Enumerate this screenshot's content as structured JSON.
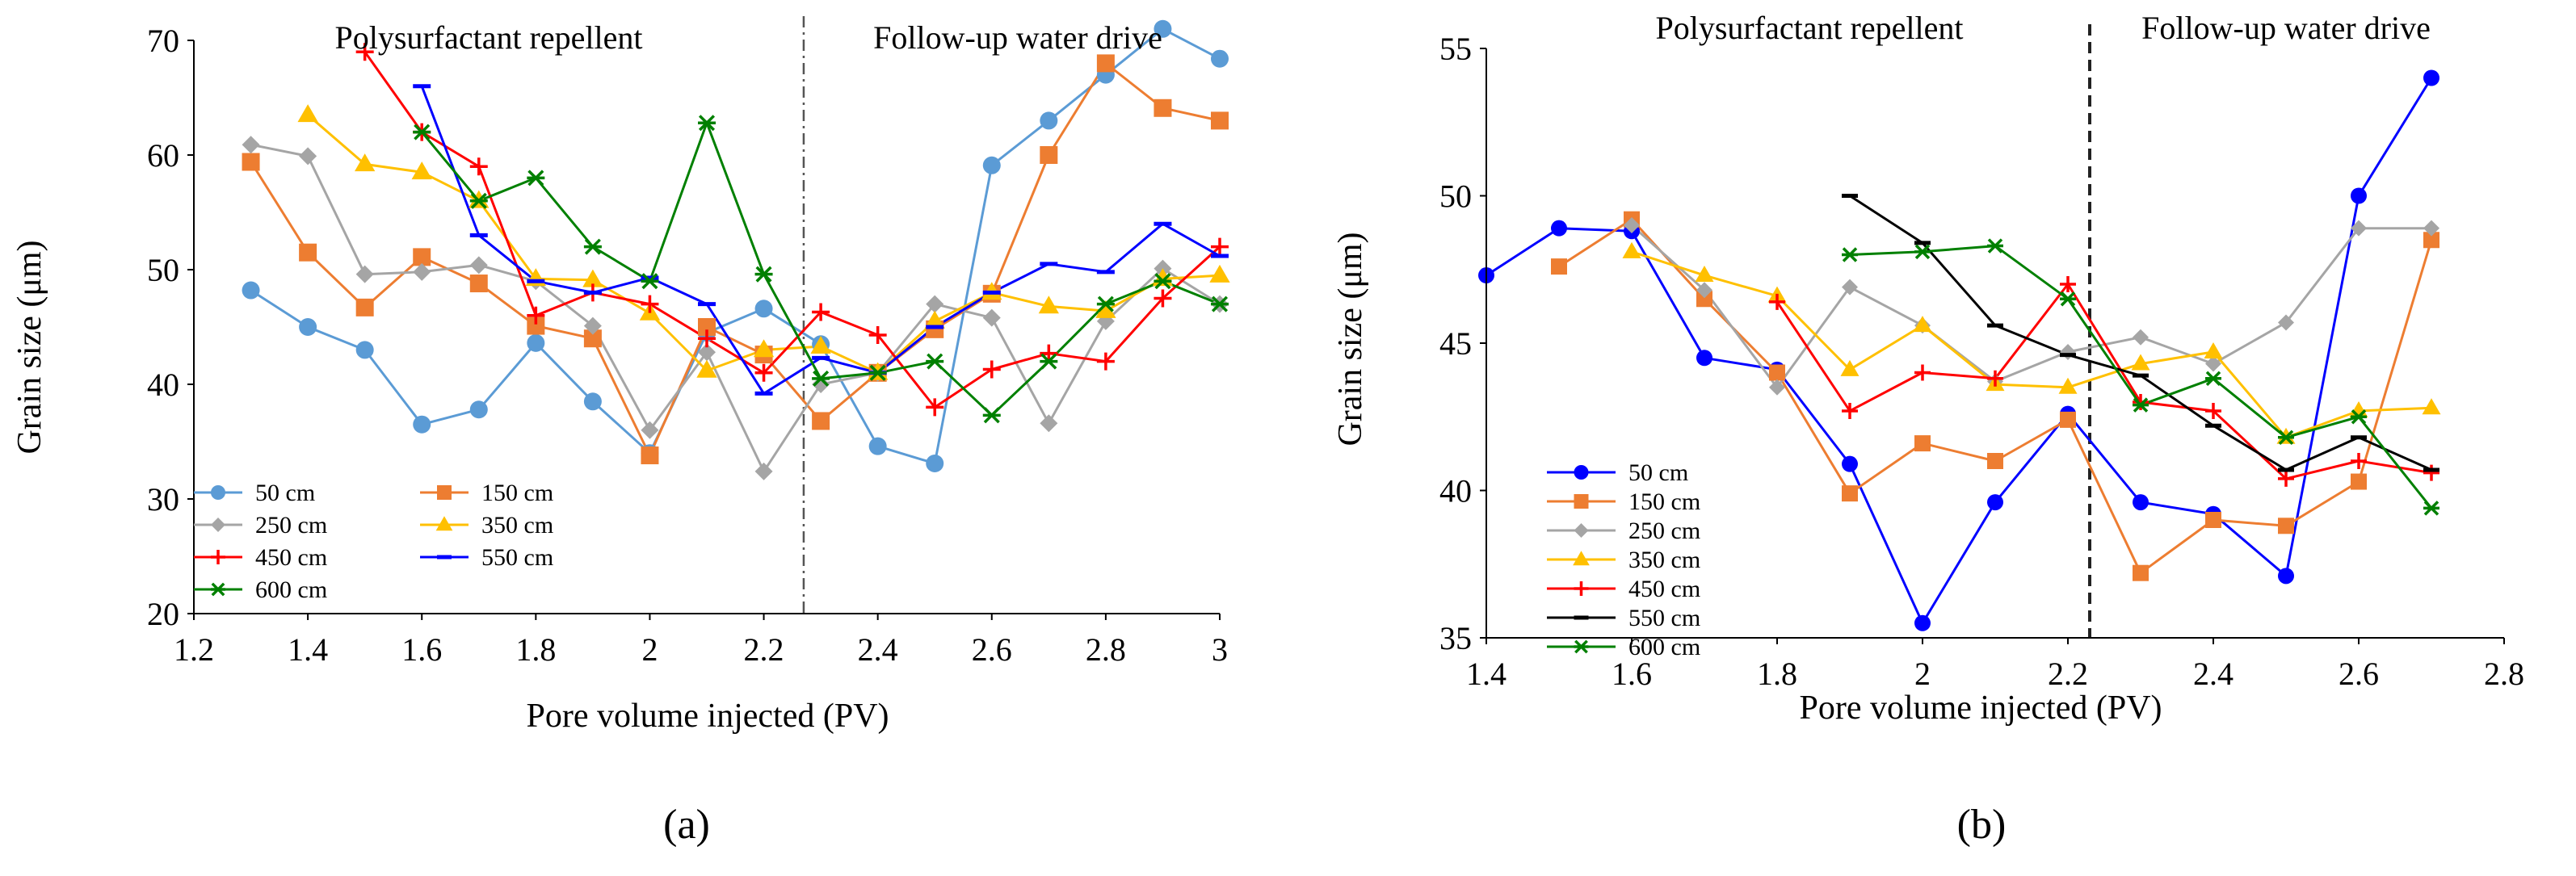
{
  "colors": {
    "50cm_a": "#5B9BD5",
    "150cm_a": "#ED7D31",
    "250cm_a": "#A5A5A5",
    "350cm_a": "#FFC000",
    "450cm_a": "#FF0000",
    "550cm_a": "#0000FF",
    "600cm_a": "#008000",
    "50cm_b": "#0000FF",
    "150cm_b": "#ED7D31",
    "250cm_b": "#A5A5A5",
    "350cm_b": "#FFC000",
    "450cm_b": "#FF0000",
    "550cm_b": "#000000",
    "600cm_b": "#008000"
  },
  "chart_data": [
    {
      "type": "line",
      "panel_label": "(a)",
      "title": "",
      "xlabel": "Pore volume injected (PV)",
      "ylabel": "Grain size (μm)",
      "xlim": [
        1.2,
        3.0
      ],
      "ylim": [
        20,
        70
      ],
      "xticks": [
        "1.2",
        "1.4",
        "1.6",
        "1.8",
        "2",
        "2.2",
        "2.4",
        "2.6",
        "2.8",
        "3"
      ],
      "yticks": [
        "20",
        "30",
        "40",
        "50",
        "60",
        "70"
      ],
      "divider_x": 2.27,
      "region_labels": [
        "Polysurfactant repellent",
        "Follow-up water drive"
      ],
      "legend_position": "bottom-left",
      "series": [
        {
          "name": "50 cm",
          "marker": "circle",
          "color": "#5B9BD5",
          "x": [
            1.3,
            1.4,
            1.5,
            1.6,
            1.7,
            1.8,
            1.9,
            2.0,
            2.1,
            2.2,
            2.3,
            2.4,
            2.5,
            2.6,
            2.7,
            2.8,
            2.9,
            3.0
          ],
          "y": [
            48.2,
            45.0,
            43.0,
            36.5,
            37.8,
            43.6,
            38.5,
            34.0,
            44.5,
            46.6,
            43.5,
            34.6,
            33.1,
            59.1,
            63.0,
            67.0,
            71.0,
            68.4
          ]
        },
        {
          "name": "150 cm",
          "marker": "square",
          "color": "#ED7D31",
          "x": [
            1.3,
            1.4,
            1.5,
            1.6,
            1.7,
            1.8,
            1.9,
            2.0,
            2.1,
            2.2,
            2.3,
            2.4,
            2.5,
            2.6,
            2.7,
            2.8,
            2.9,
            3.0
          ],
          "y": [
            59.4,
            51.5,
            46.7,
            51.1,
            48.8,
            45.1,
            44.0,
            33.8,
            45.0,
            42.6,
            36.8,
            41.0,
            44.8,
            47.9,
            60.0,
            68.0,
            64.1,
            63.0
          ]
        },
        {
          "name": "250 cm",
          "marker": "diamond",
          "color": "#A5A5A5",
          "x": [
            1.3,
            1.4,
            1.5,
            1.6,
            1.7,
            1.8,
            1.9,
            2.0,
            2.1,
            2.2,
            2.3,
            2.4,
            2.5,
            2.6,
            2.7,
            2.8,
            2.9,
            3.0
          ],
          "y": [
            60.9,
            59.9,
            49.6,
            49.8,
            50.4,
            49.0,
            45.1,
            36.0,
            42.8,
            32.4,
            40.0,
            41.0,
            47.0,
            45.8,
            36.6,
            45.5,
            50.1,
            47.0
          ]
        },
        {
          "name": "350 cm",
          "marker": "triangle",
          "color": "#FFC000",
          "x": [
            1.4,
            1.5,
            1.6,
            1.7,
            1.8,
            1.9,
            2.0,
            2.1,
            2.2,
            2.3,
            2.4,
            2.5,
            2.6,
            2.7,
            2.8,
            2.9,
            3.0
          ],
          "y": [
            63.5,
            59.2,
            58.5,
            56.0,
            49.2,
            49.1,
            46.2,
            41.2,
            43.0,
            43.3,
            41.0,
            45.5,
            48.0,
            46.8,
            46.4,
            49.2,
            49.5
          ]
        },
        {
          "name": "450 cm",
          "marker": "plus",
          "color": "#FF0000",
          "x": [
            1.5,
            1.6,
            1.7,
            1.8,
            1.9,
            2.0,
            2.1,
            2.2,
            2.3,
            2.4,
            2.5,
            2.6,
            2.7,
            2.8,
            2.9,
            3.0
          ],
          "y": [
            69.0,
            62.0,
            59.0,
            46.0,
            48.0,
            47.0,
            44.0,
            41.0,
            46.3,
            44.3,
            38.0,
            41.3,
            42.7,
            42.0,
            47.5,
            52.0
          ]
        },
        {
          "name": "550 cm",
          "marker": "dash",
          "color": "#0000FF",
          "x": [
            1.6,
            1.7,
            1.8,
            1.9,
            2.0,
            2.1,
            2.2,
            2.3,
            2.4,
            2.5,
            2.6,
            2.7,
            2.8,
            2.9,
            3.0
          ],
          "y": [
            66.0,
            53.0,
            49.0,
            48.0,
            49.3,
            47.0,
            39.2,
            42.3,
            41.0,
            45.0,
            48.0,
            50.5,
            49.8,
            54.0,
            51.2
          ]
        },
        {
          "name": "600 cm",
          "marker": "star",
          "color": "#008000",
          "x": [
            1.6,
            1.7,
            1.8,
            1.9,
            2.0,
            2.1,
            2.2,
            2.3,
            2.4,
            2.5,
            2.6,
            2.7,
            2.8,
            2.9,
            3.0
          ],
          "y": [
            62.0,
            56.0,
            58.0,
            52.0,
            49.0,
            62.8,
            49.6,
            40.5,
            41.0,
            42.0,
            37.3,
            42.0,
            47.0,
            49.0,
            47.0
          ]
        }
      ]
    },
    {
      "type": "line",
      "panel_label": "(b)",
      "title": "",
      "xlabel": "Pore volume injected (PV)",
      "ylabel": "Grain size (μm)",
      "xlim": [
        1.4,
        2.8
      ],
      "ylim": [
        35,
        55
      ],
      "xticks": [
        "1.4",
        "1.6",
        "1.8",
        "2",
        "2.2",
        "2.4",
        "2.6",
        "2.8"
      ],
      "yticks": [
        "35",
        "40",
        "45",
        "50",
        "55"
      ],
      "divider_x": 2.23,
      "region_labels": [
        "Polysurfactant repellent",
        "Follow-up water drive"
      ],
      "legend_position": "bottom-left",
      "series": [
        {
          "name": "50 cm",
          "marker": "circle",
          "color": "#0000FF",
          "x": [
            1.4,
            1.5,
            1.6,
            1.7,
            1.8,
            1.9,
            2.0,
            2.1,
            2.2,
            2.3,
            2.4,
            2.5,
            2.6,
            2.7
          ],
          "y": [
            47.3,
            48.9,
            48.8,
            44.5,
            44.1,
            40.9,
            35.5,
            39.6,
            42.6,
            39.6,
            39.2,
            37.1,
            50.0,
            54.0
          ]
        },
        {
          "name": "150 cm",
          "marker": "square",
          "color": "#ED7D31",
          "x": [
            1.5,
            1.6,
            1.7,
            1.8,
            1.9,
            2.0,
            2.1,
            2.2,
            2.3,
            2.4,
            2.5,
            2.6,
            2.7
          ],
          "y": [
            47.6,
            49.2,
            46.5,
            44.0,
            39.9,
            41.6,
            41.0,
            42.4,
            37.2,
            39.0,
            38.8,
            40.3,
            48.5
          ]
        },
        {
          "name": "250 cm",
          "marker": "diamond",
          "color": "#A5A5A5",
          "x": [
            1.6,
            1.7,
            1.8,
            1.9,
            2.0,
            2.1,
            2.2,
            2.3,
            2.4,
            2.5,
            2.6,
            2.7
          ],
          "y": [
            49.0,
            46.8,
            43.5,
            46.9,
            45.6,
            43.7,
            44.7,
            45.2,
            44.3,
            45.7,
            48.9,
            48.9
          ]
        },
        {
          "name": "350 cm",
          "marker": "triangle",
          "color": "#FFC000",
          "x": [
            1.6,
            1.7,
            1.8,
            1.9,
            2.0,
            2.1,
            2.2,
            2.3,
            2.4,
            2.5,
            2.6,
            2.7
          ],
          "y": [
            48.1,
            47.3,
            46.6,
            44.1,
            45.6,
            43.6,
            43.5,
            44.3,
            44.7,
            41.8,
            42.7,
            42.8
          ]
        },
        {
          "name": "450 cm",
          "marker": "plus",
          "color": "#FF0000",
          "x": [
            1.8,
            1.9,
            2.0,
            2.1,
            2.2,
            2.3,
            2.4,
            2.5,
            2.6,
            2.7
          ],
          "y": [
            46.4,
            42.7,
            44.0,
            43.8,
            47.0,
            43.0,
            42.7,
            40.4,
            41.0,
            40.6
          ]
        },
        {
          "name": "550 cm",
          "marker": "dash",
          "color": "#000000",
          "x": [
            1.9,
            2.0,
            2.1,
            2.2,
            2.3,
            2.4,
            2.5,
            2.6,
            2.7
          ],
          "y": [
            50.0,
            48.4,
            45.6,
            44.6,
            43.9,
            42.2,
            40.7,
            41.8,
            40.7
          ]
        },
        {
          "name": "600 cm",
          "marker": "star",
          "color": "#008000",
          "x": [
            1.9,
            2.0,
            2.1,
            2.2,
            2.3,
            2.4,
            2.5,
            2.6,
            2.7
          ],
          "y": [
            48.0,
            48.1,
            48.3,
            46.5,
            42.9,
            43.8,
            41.8,
            42.5,
            39.4
          ]
        }
      ]
    }
  ]
}
